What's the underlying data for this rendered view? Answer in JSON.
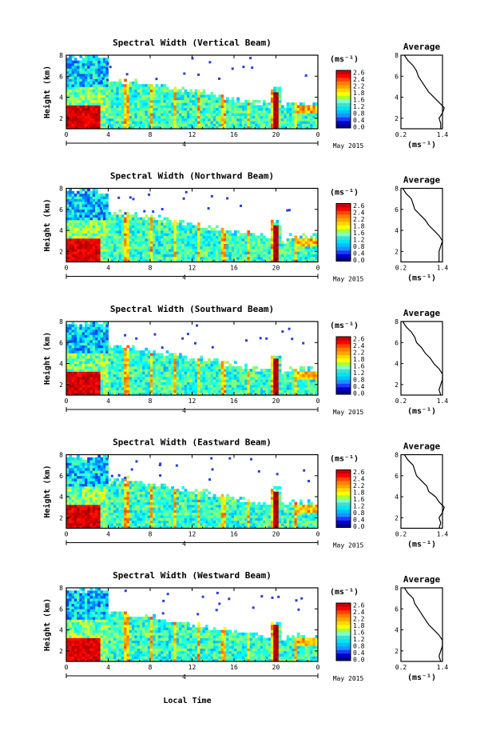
{
  "figure": {
    "xlabel": "Local Time",
    "date_label": "May 2015",
    "day_label": "4"
  },
  "colorbar": {
    "unit": "(ms⁻¹)",
    "ticks": [
      "2.6",
      "2.4",
      "2.2",
      "1.8",
      "1.6",
      "1.2",
      "0.8",
      "0.4",
      "0.0"
    ],
    "colors": [
      "#000080",
      "#0000cd",
      "#1e3cff",
      "#1e90ff",
      "#00bfff",
      "#00e5ee",
      "#40e0d0",
      "#7fffd4",
      "#adff2f",
      "#ffff00",
      "#ffd700",
      "#ffa500",
      "#ff7f00",
      "#ff4500",
      "#ff0000",
      "#c80000"
    ]
  },
  "profile_axis": {
    "title": "Average",
    "xlabel": "(ms⁻¹)",
    "xticks": [
      "0.2",
      "1.4"
    ],
    "yticks": [
      "2",
      "4",
      "6",
      "8"
    ]
  },
  "chart_data": [
    {
      "type": "heatmap",
      "title": "Spectral Width (Vertical Beam)",
      "ylabel": "Height (km)",
      "xlabel": "Local Time",
      "x_ticks": [
        "0",
        "4",
        "8",
        "12",
        "16",
        "20",
        "0"
      ],
      "y_ticks": [
        "2",
        "4",
        "6",
        "8"
      ],
      "xlim": [
        0,
        24
      ],
      "ylim": [
        1,
        8
      ],
      "color_range": [
        0.0,
        2.8
      ],
      "profile": {
        "heights": [
          1.0,
          1.5,
          2.0,
          2.5,
          3.0,
          3.5,
          4.0,
          4.5,
          5.0,
          5.5,
          6.0,
          6.5,
          7.0,
          7.5,
          8.0
        ],
        "values": [
          1.35,
          1.35,
          1.3,
          1.4,
          1.45,
          1.3,
          1.15,
          1.0,
          0.9,
          0.8,
          0.7,
          0.65,
          0.55,
          0.4,
          0.3
        ]
      }
    },
    {
      "type": "heatmap",
      "title": "Spectral Width (Northward Beam)",
      "ylabel": "Height (km)",
      "xlabel": "Local Time",
      "x_ticks": [
        "0",
        "4",
        "8",
        "12",
        "16",
        "20",
        "0"
      ],
      "y_ticks": [
        "2",
        "4",
        "6",
        "8"
      ],
      "xlim": [
        0,
        24
      ],
      "ylim": [
        1,
        8
      ],
      "color_range": [
        0.0,
        2.8
      ],
      "profile": {
        "heights": [
          1.0,
          1.5,
          2.0,
          2.5,
          3.0,
          3.5,
          4.0,
          4.5,
          5.0,
          5.5,
          6.0,
          6.5,
          7.0,
          7.5,
          8.0
        ],
        "values": [
          1.3,
          1.3,
          1.3,
          1.35,
          1.4,
          1.3,
          1.15,
          1.0,
          0.9,
          0.75,
          0.6,
          0.55,
          0.5,
          0.35,
          0.25
        ]
      }
    },
    {
      "type": "heatmap",
      "title": "Spectral Width (Southward Beam)",
      "ylabel": "Height (km)",
      "xlabel": "Local Time",
      "x_ticks": [
        "0",
        "4",
        "8",
        "12",
        "16",
        "20",
        "0"
      ],
      "y_ticks": [
        "2",
        "4",
        "6",
        "8"
      ],
      "xlim": [
        0,
        24
      ],
      "ylim": [
        1,
        8
      ],
      "color_range": [
        0.0,
        2.8
      ],
      "profile": {
        "heights": [
          1.0,
          1.5,
          2.0,
          2.5,
          3.0,
          3.5,
          4.0,
          4.5,
          5.0,
          5.5,
          6.0,
          6.5,
          7.0,
          7.5,
          8.0
        ],
        "values": [
          1.35,
          1.3,
          1.35,
          1.4,
          1.4,
          1.3,
          1.15,
          1.05,
          0.9,
          0.8,
          0.65,
          0.6,
          0.5,
          0.35,
          0.25
        ]
      }
    },
    {
      "type": "heatmap",
      "title": "Spectral Width (Eastward Beam)",
      "ylabel": "Height (km)",
      "xlabel": "Local Time",
      "x_ticks": [
        "0",
        "4",
        "8",
        "12",
        "16",
        "20",
        "0"
      ],
      "y_ticks": [
        "2",
        "4",
        "6",
        "8"
      ],
      "xlim": [
        0,
        24
      ],
      "ylim": [
        1,
        8
      ],
      "color_range": [
        0.0,
        2.8
      ],
      "profile": {
        "heights": [
          1.0,
          1.5,
          2.0,
          2.5,
          3.0,
          3.5,
          4.0,
          4.5,
          5.0,
          5.5,
          6.0,
          6.5,
          7.0,
          7.5,
          8.0
        ],
        "values": [
          1.3,
          1.35,
          1.3,
          1.4,
          1.45,
          1.3,
          1.2,
          1.0,
          0.95,
          0.8,
          0.65,
          0.6,
          0.55,
          0.4,
          0.3
        ]
      }
    },
    {
      "type": "heatmap",
      "title": "Spectral Width (Westward Beam)",
      "ylabel": "Height (km)",
      "xlabel": "Local Time",
      "x_ticks": [
        "0",
        "4",
        "8",
        "12",
        "16",
        "20",
        "0"
      ],
      "y_ticks": [
        "2",
        "4",
        "6",
        "8"
      ],
      "xlim": [
        0,
        24
      ],
      "ylim": [
        1,
        8
      ],
      "color_range": [
        0.0,
        2.8
      ],
      "profile": {
        "heights": [
          1.0,
          1.5,
          2.0,
          2.5,
          3.0,
          3.5,
          4.0,
          4.5,
          5.0,
          5.5,
          6.0,
          6.5,
          7.0,
          7.5,
          8.0
        ],
        "values": [
          1.35,
          1.3,
          1.35,
          1.4,
          1.4,
          1.3,
          1.15,
          1.0,
          0.9,
          0.8,
          0.7,
          0.6,
          0.55,
          0.4,
          0.3
        ]
      }
    }
  ]
}
